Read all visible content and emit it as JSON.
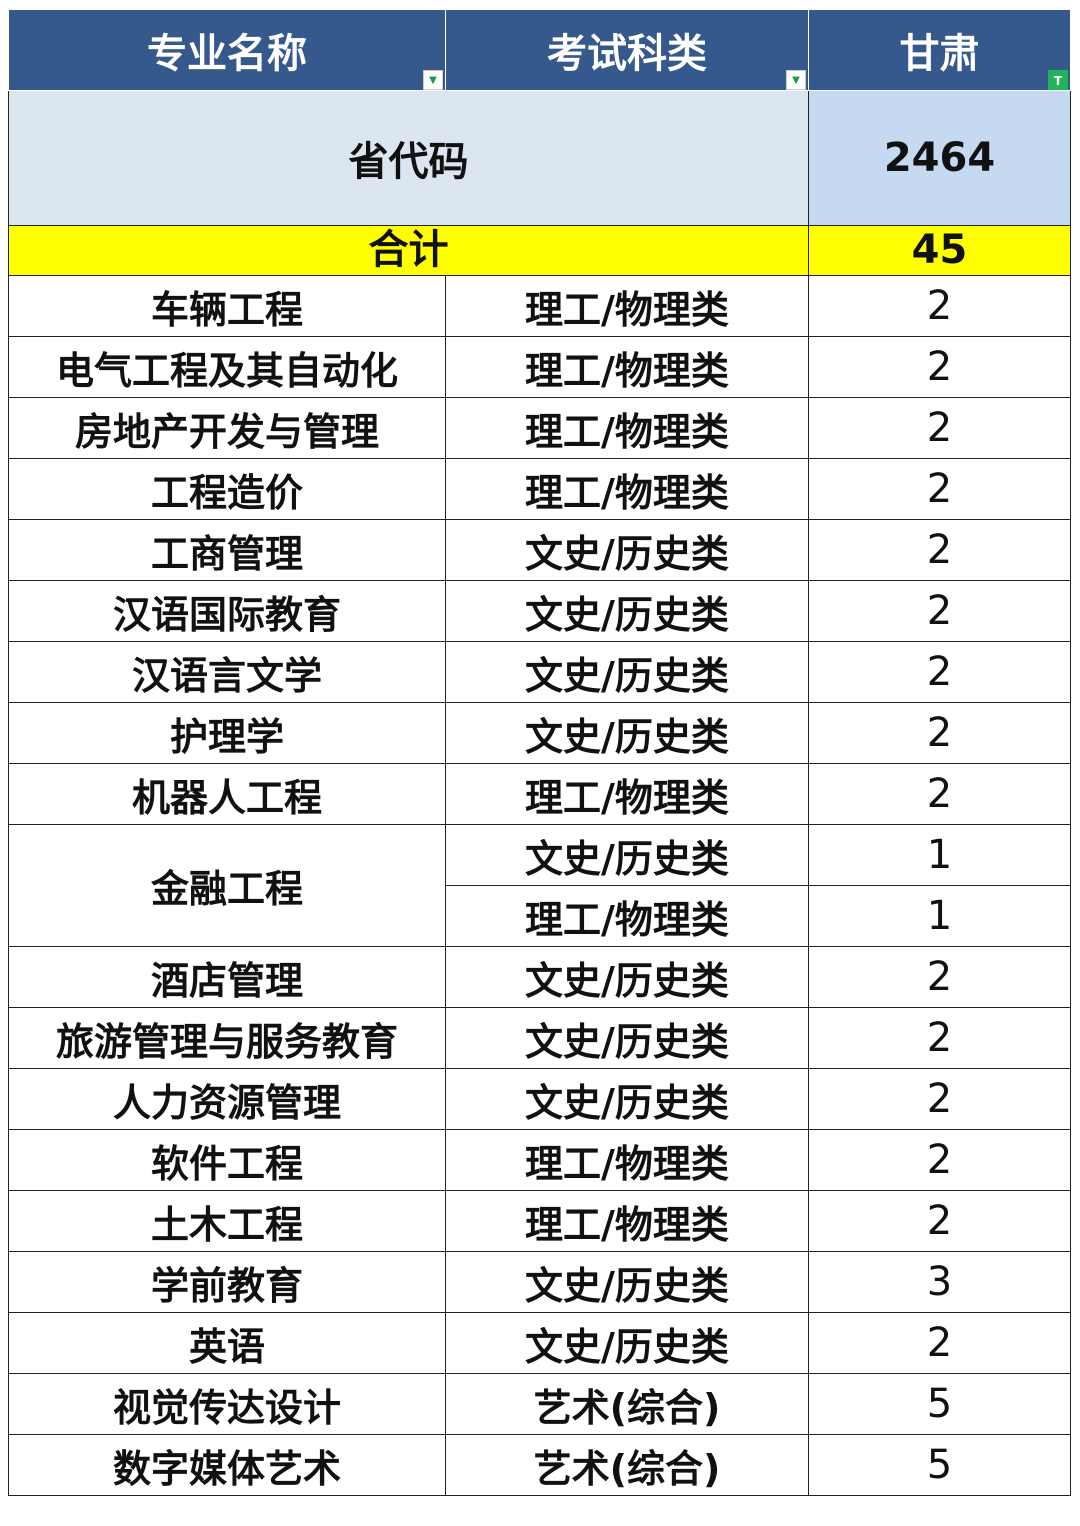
{
  "header": {
    "columns": [
      {
        "label": "专业名称",
        "filter_icon": "dropdown-arrow"
      },
      {
        "label": "考试科类",
        "filter_icon": "dropdown-arrow"
      },
      {
        "label": "甘肃",
        "filter_icon": "filter-active"
      }
    ]
  },
  "code_row": {
    "label": "省代码",
    "value": "2464"
  },
  "total_row": {
    "label": "合计",
    "value": "45"
  },
  "colors": {
    "header_bg": "#36598d",
    "code_bg": "#dce6f1",
    "code_value_bg": "#c5d9f1",
    "total_bg": "#ffff00"
  },
  "rows": [
    {
      "major": "车辆工程",
      "category": "理工/物理类",
      "count": "2"
    },
    {
      "major": "电气工程及其自动化",
      "category": "理工/物理类",
      "count": "2"
    },
    {
      "major": "房地产开发与管理",
      "category": "理工/物理类",
      "count": "2"
    },
    {
      "major": "工程造价",
      "category": "理工/物理类",
      "count": "2"
    },
    {
      "major": "工商管理",
      "category": "文史/历史类",
      "count": "2"
    },
    {
      "major": "汉语国际教育",
      "category": "文史/历史类",
      "count": "2"
    },
    {
      "major": "汉语言文学",
      "category": "文史/历史类",
      "count": "2"
    },
    {
      "major": "护理学",
      "category": "文史/历史类",
      "count": "2"
    },
    {
      "major": "机器人工程",
      "category": "理工/物理类",
      "count": "2"
    },
    {
      "major": "金融工程",
      "category": "文史/历史类",
      "count": "1",
      "rowspan": 2
    },
    {
      "major": "",
      "category": "理工/物理类",
      "count": "1",
      "merged": true
    },
    {
      "major": "酒店管理",
      "category": "文史/历史类",
      "count": "2"
    },
    {
      "major": "旅游管理与服务教育",
      "category": "文史/历史类",
      "count": "2"
    },
    {
      "major": "人力资源管理",
      "category": "文史/历史类",
      "count": "2"
    },
    {
      "major": "软件工程",
      "category": "理工/物理类",
      "count": "2"
    },
    {
      "major": "土木工程",
      "category": "理工/物理类",
      "count": "2"
    },
    {
      "major": "学前教育",
      "category": "文史/历史类",
      "count": "3"
    },
    {
      "major": "英语",
      "category": "文史/历史类",
      "count": "2"
    },
    {
      "major": "视觉传达设计",
      "category": "艺术(综合)",
      "count": "5"
    },
    {
      "major": "数字媒体艺术",
      "category": "艺术(综合)",
      "count": "5"
    }
  ]
}
